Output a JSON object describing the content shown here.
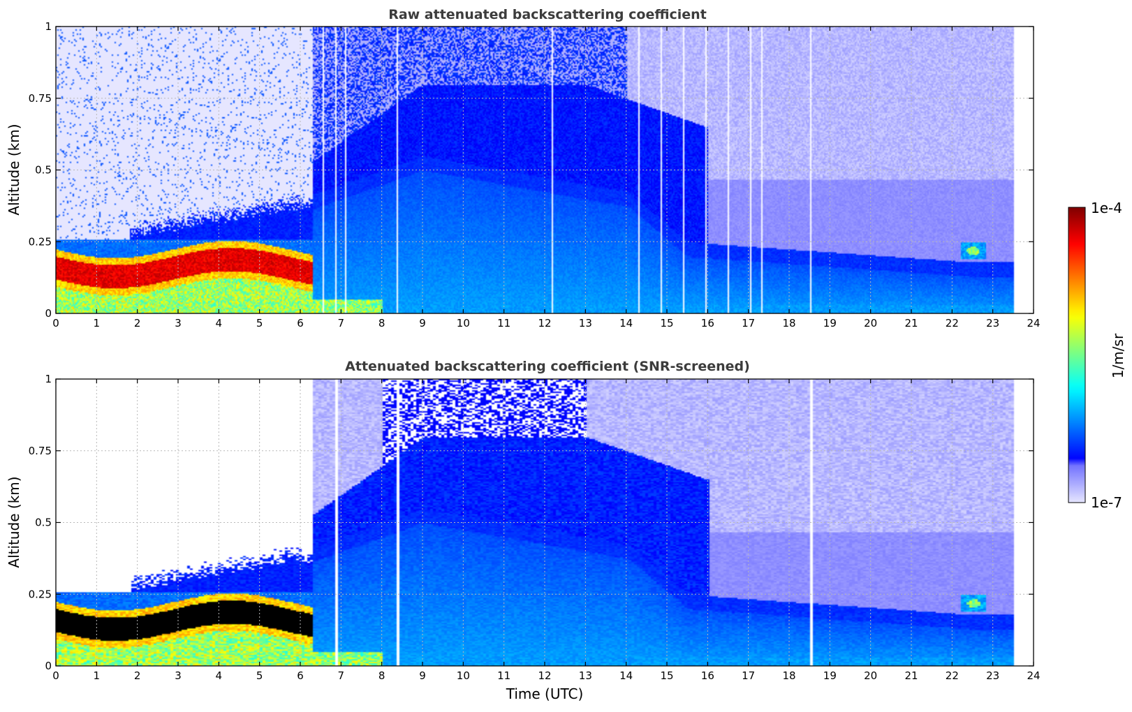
{
  "chart_data": [
    {
      "type": "heatmap",
      "title": "Raw attenuated backscattering coefficient",
      "xlabel": "",
      "ylabel": "Altitude (km)",
      "xlim": [
        0,
        24
      ],
      "ylim": [
        0,
        1
      ],
      "xticks": [
        "0",
        "1",
        "2",
        "3",
        "4",
        "5",
        "6",
        "7",
        "8",
        "9",
        "10",
        "11",
        "12",
        "13",
        "14",
        "15",
        "16",
        "17",
        "18",
        "19",
        "20",
        "21",
        "22",
        "23",
        "24"
      ],
      "yticks": [
        "0",
        "0.25",
        "0.5",
        "0.75",
        "1"
      ],
      "grid": true,
      "variant": "raw",
      "layers": [
        {
          "name": "surface layer",
          "x": [
            0,
            23.5
          ],
          "y": [
            0,
            0.12
          ]
        },
        {
          "name": "nocturnal aerosol layer",
          "x": [
            0,
            6.3
          ],
          "y": [
            0.1,
            0.23
          ]
        },
        {
          "name": "boundary layer top",
          "x": [
            6,
            23.5
          ],
          "y": [
            0.15,
            0.5
          ]
        },
        {
          "name": "cloud",
          "x": [
            22.2,
            22.8
          ],
          "y": [
            0.19,
            0.25
          ]
        }
      ]
    },
    {
      "type": "heatmap",
      "title": "Attenuated backscattering coefficient (SNR-screened)",
      "xlabel": "Time (UTC)",
      "ylabel": "Altitude (km)",
      "xlim": [
        0,
        24
      ],
      "ylim": [
        0,
        1
      ],
      "xticks": [
        "0",
        "1",
        "2",
        "3",
        "4",
        "5",
        "6",
        "7",
        "8",
        "9",
        "10",
        "11",
        "12",
        "13",
        "14",
        "15",
        "16",
        "17",
        "18",
        "19",
        "20",
        "21",
        "22",
        "23",
        "24"
      ],
      "yticks": [
        "0",
        "0.25",
        "0.5",
        "0.75",
        "1"
      ],
      "grid": true,
      "variant": "screened"
    }
  ],
  "colorbar": {
    "label": "1/m/sr",
    "max_label": "1e-4",
    "min_label": "1e-7",
    "min_value": 1e-07,
    "max_value": 0.0001,
    "scale": "log",
    "colormap": "jet"
  }
}
